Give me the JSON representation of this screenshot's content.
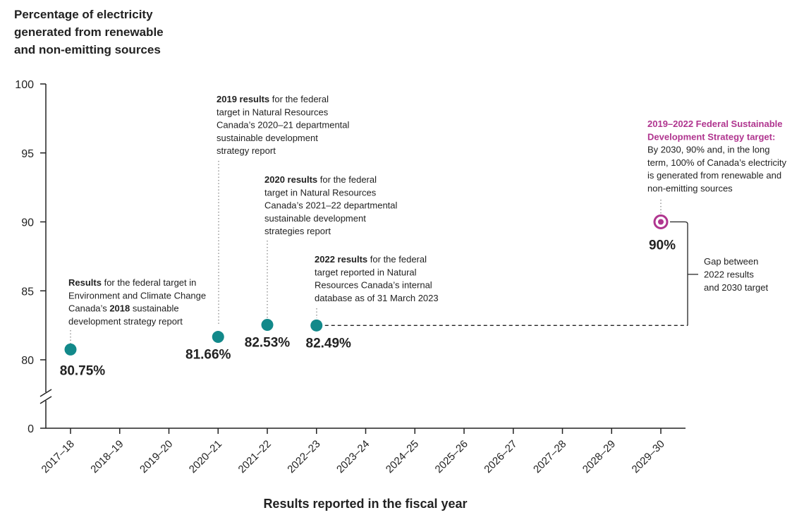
{
  "chart_data": {
    "type": "dot",
    "ylabel": [
      "Percentage of electricity",
      "generated from renewable",
      "and non-emitting sources"
    ],
    "xlabel": "Results reported in the fiscal year",
    "categories": [
      "2017–18",
      "2018–19",
      "2019–20",
      "2020–21",
      "2021–22",
      "2022–23",
      "2023–24",
      "2024–25",
      "2025–26",
      "2026–27",
      "2027–28",
      "2028–29",
      "2029–30"
    ],
    "x_label_colors": [
      "#222222",
      "#222222",
      "#222222",
      "#222222",
      "#222222",
      "#222222",
      "#8a8a8a",
      "#8a8a8a",
      "#8a8a8a",
      "#8a8a8a",
      "#8a8a8a",
      "#8a8a8a",
      "#8a8a8a"
    ],
    "ylim": [
      0,
      100
    ],
    "y_break": [
      0,
      80
    ],
    "yticks": [
      0,
      80,
      85,
      90,
      95,
      100
    ],
    "series": [
      {
        "color": "#12898a",
        "marker": "dot",
        "values": [
          80.75,
          null,
          null,
          81.66,
          82.53,
          82.49,
          null,
          null,
          null,
          null,
          null,
          null,
          null
        ],
        "value_labels": [
          "80.75%",
          null,
          null,
          "81.66%",
          "82.53%",
          "82.49%",
          null,
          null,
          null,
          null,
          null,
          null,
          null
        ]
      },
      {
        "color": "#b0358f",
        "marker": "target",
        "values": [
          null,
          null,
          null,
          null,
          null,
          null,
          null,
          null,
          null,
          null,
          null,
          null,
          90
        ],
        "value_labels": [
          null,
          null,
          null,
          null,
          null,
          null,
          null,
          null,
          null,
          null,
          null,
          null,
          "90%"
        ]
      }
    ],
    "annotations": [
      {
        "lines": [
          [
            {
              "bold": "Results"
            },
            " for the federal target in"
          ],
          [
            "Environment and Climate Change"
          ],
          [
            "Canada’s ",
            {
              "bold": "2018"
            },
            " sustainable"
          ],
          [
            "development strategy report"
          ]
        ]
      },
      {
        "lines": [
          [
            {
              "bold": "2019 results"
            },
            " for the federal"
          ],
          [
            "target in Natural Resources"
          ],
          [
            "Canada’s 2020–21 departmental"
          ],
          [
            "sustainable development"
          ],
          [
            "strategy report"
          ]
        ]
      },
      {
        "lines": [
          [
            {
              "bold": "2020 results"
            },
            " for the federal"
          ],
          [
            "target in Natural Resources"
          ],
          [
            "Canada’s 2021–22 departmental"
          ],
          [
            "sustainable development"
          ],
          [
            "strategies report"
          ]
        ]
      },
      {
        "lines": [
          [
            {
              "bold": "2022 results"
            },
            " for the federal"
          ],
          [
            "target reported in Natural"
          ],
          [
            "Resources Canada’s internal"
          ],
          [
            "database as of 31 March 2023"
          ]
        ]
      },
      {
        "bold_color": "#b0358f",
        "lines": [
          [
            {
              "bold": "2019–2022 Federal Sustainable"
            }
          ],
          [
            {
              "bold": "Development Strategy target:"
            }
          ],
          [
            "By 2030, 90% and, in the long"
          ],
          [
            "term, 100% of Canada’s electricity"
          ],
          [
            "is generated from renewable and"
          ],
          [
            "non-emitting sources"
          ]
        ]
      }
    ],
    "gap_label": [
      "Gap between",
      "2022 results",
      "and 2030 target"
    ]
  }
}
